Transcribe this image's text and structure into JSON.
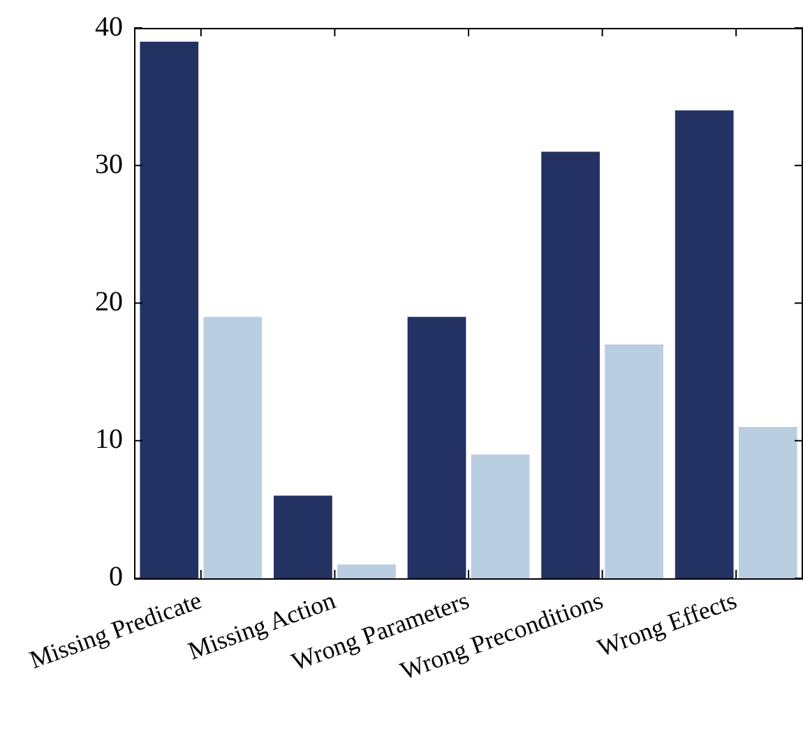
{
  "chart_data": {
    "type": "bar",
    "categories": [
      "Missing Predicate",
      "Missing Action",
      "Wrong Parameters",
      "Wrong Preconditions",
      "Wrong Effects"
    ],
    "series": [
      {
        "color": "#233163",
        "values": [
          39,
          6,
          19,
          31,
          34
        ]
      },
      {
        "color": "#bacee2",
        "values": [
          19,
          1,
          9,
          17,
          11
        ]
      }
    ],
    "ylim": [
      0,
      40
    ],
    "yticks": [
      0,
      10,
      20,
      30,
      40
    ],
    "grid": false,
    "legend": false
  }
}
